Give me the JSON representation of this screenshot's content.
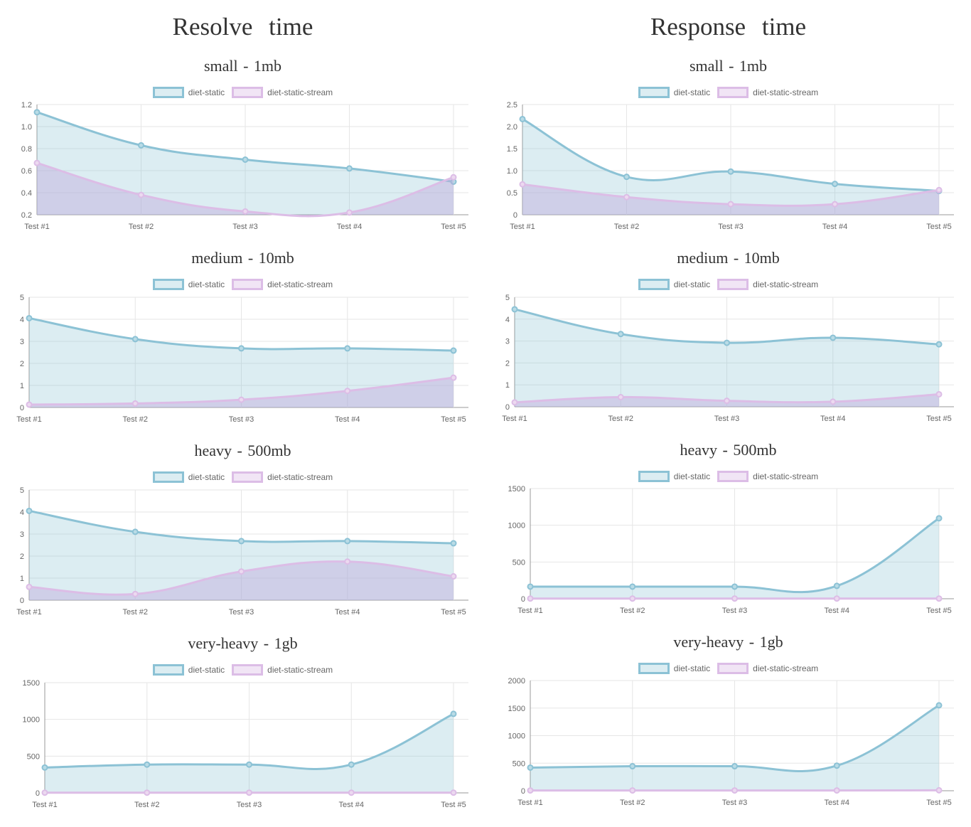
{
  "columns": [
    {
      "title": "Resolve   time"
    },
    {
      "title": "Response    time"
    }
  ],
  "colors": {
    "diet_static_line": "#8cc2d5",
    "diet_static_fill": "rgba(140,194,213,0.30)",
    "diet_static_stream_line": "#dcbde6",
    "diet_static_stream_fill": "rgba(190,170,220,0.45)"
  },
  "chart_data": [
    {
      "type": "area",
      "title": "small  -  1mb",
      "categories": [
        "Test #1",
        "Test #2",
        "Test #3",
        "Test #4",
        "Test #5"
      ],
      "series": [
        {
          "name": "diet-static",
          "values": [
            1.13,
            0.83,
            0.7,
            0.62,
            0.5
          ]
        },
        {
          "name": "diet-static-stream",
          "values": [
            0.67,
            0.38,
            0.23,
            0.22,
            0.54
          ]
        }
      ],
      "ylim": [
        0.2,
        1.2
      ],
      "yticks": [
        0.2,
        0.4,
        0.6,
        0.8,
        1.0,
        1.2
      ],
      "ytick_labels": [
        "0.2",
        "0.4",
        "0.6",
        "0.8",
        "1.0",
        "1.2"
      ],
      "grid": true,
      "legend": "top-center"
    },
    {
      "type": "area",
      "title": "small  -  1mb",
      "categories": [
        "Test #1",
        "Test #2",
        "Test #3",
        "Test #4",
        "Test #5"
      ],
      "series": [
        {
          "name": "diet-static",
          "values": [
            2.17,
            0.86,
            0.98,
            0.7,
            0.54
          ]
        },
        {
          "name": "diet-static-stream",
          "values": [
            0.69,
            0.4,
            0.24,
            0.24,
            0.56
          ]
        }
      ],
      "ylim": [
        0,
        2.5
      ],
      "yticks": [
        0,
        0.5,
        1.0,
        1.5,
        2.0,
        2.5
      ],
      "ytick_labels": [
        "0",
        "0.5",
        "1.0",
        "1.5",
        "2.0",
        "2.5"
      ],
      "grid": true,
      "legend": "top-center"
    },
    {
      "type": "area",
      "title": "medium  -  10mb",
      "categories": [
        "Test #1",
        "Test #2",
        "Test #3",
        "Test #4",
        "Test #5"
      ],
      "series": [
        {
          "name": "diet-static",
          "values": [
            4.05,
            3.1,
            2.68,
            2.68,
            2.58
          ]
        },
        {
          "name": "diet-static-stream",
          "values": [
            0.13,
            0.18,
            0.35,
            0.75,
            1.35
          ]
        }
      ],
      "ylim": [
        0,
        5
      ],
      "yticks": [
        0,
        1,
        2,
        3,
        4,
        5
      ],
      "ytick_labels": [
        "0",
        "1",
        "2",
        "3",
        "4",
        "5"
      ],
      "grid": true,
      "legend": "top-center"
    },
    {
      "type": "area",
      "title": "medium  -  10mb",
      "categories": [
        "Test #1",
        "Test #2",
        "Test #3",
        "Test #4",
        "Test #5"
      ],
      "series": [
        {
          "name": "diet-static",
          "values": [
            4.45,
            3.32,
            2.92,
            3.15,
            2.85
          ]
        },
        {
          "name": "diet-static-stream",
          "values": [
            0.2,
            0.44,
            0.27,
            0.23,
            0.57
          ]
        }
      ],
      "ylim": [
        0,
        5
      ],
      "yticks": [
        0,
        1,
        2,
        3,
        4,
        5
      ],
      "ytick_labels": [
        "0",
        "1",
        "2",
        "3",
        "4",
        "5"
      ],
      "grid": true,
      "legend": "top-center"
    },
    {
      "type": "area",
      "title": "heavy  -  500mb",
      "categories": [
        "Test #1",
        "Test #2",
        "Test #3",
        "Test #4",
        "Test #5"
      ],
      "series": [
        {
          "name": "diet-static",
          "values": [
            4.05,
            3.1,
            2.68,
            2.68,
            2.58
          ]
        },
        {
          "name": "diet-static-stream",
          "values": [
            0.6,
            0.28,
            1.3,
            1.75,
            1.08
          ]
        }
      ],
      "ylim": [
        0,
        5
      ],
      "yticks": [
        0,
        1,
        2,
        3,
        4,
        5
      ],
      "ytick_labels": [
        "0",
        "1",
        "2",
        "3",
        "4",
        "5"
      ],
      "grid": true,
      "legend": "top-center"
    },
    {
      "type": "area",
      "title": "heavy  -  500mb",
      "categories": [
        "Test #1",
        "Test #2",
        "Test #3",
        "Test #4",
        "Test #5"
      ],
      "series": [
        {
          "name": "diet-static",
          "values": [
            165,
            165,
            165,
            175,
            1095
          ]
        },
        {
          "name": "diet-static-stream",
          "values": [
            3,
            3,
            3,
            3,
            3
          ]
        }
      ],
      "ylim": [
        0,
        1500
      ],
      "yticks": [
        0,
        500,
        1000,
        1500
      ],
      "ytick_labels": [
        "0",
        "500",
        "1000",
        "1500"
      ],
      "grid": true,
      "legend": "top-center"
    },
    {
      "type": "area",
      "title": "very-heavy  -  1gb",
      "categories": [
        "Test #1",
        "Test #2",
        "Test #3",
        "Test #4",
        "Test #5"
      ],
      "series": [
        {
          "name": "diet-static",
          "values": [
            345,
            385,
            385,
            385,
            1075
          ]
        },
        {
          "name": "diet-static-stream",
          "values": [
            3,
            3,
            3,
            3,
            3
          ]
        }
      ],
      "ylim": [
        0,
        1500
      ],
      "yticks": [
        0,
        500,
        1000,
        1500
      ],
      "ytick_labels": [
        "0",
        "500",
        "1000",
        "1500"
      ],
      "grid": true,
      "legend": "top-center"
    },
    {
      "type": "area",
      "title": "very-heavy  -  1gb",
      "categories": [
        "Test #1",
        "Test #2",
        "Test #3",
        "Test #4",
        "Test #5"
      ],
      "series": [
        {
          "name": "diet-static",
          "values": [
            420,
            445,
            445,
            455,
            1550
          ]
        },
        {
          "name": "diet-static-stream",
          "values": [
            5,
            5,
            5,
            5,
            8
          ]
        }
      ],
      "ylim": [
        0,
        2000
      ],
      "yticks": [
        0,
        500,
        1000,
        1500,
        2000
      ],
      "ytick_labels": [
        "0",
        "500",
        "1000",
        "1500",
        "2000"
      ],
      "grid": true,
      "legend": "top-center"
    }
  ]
}
